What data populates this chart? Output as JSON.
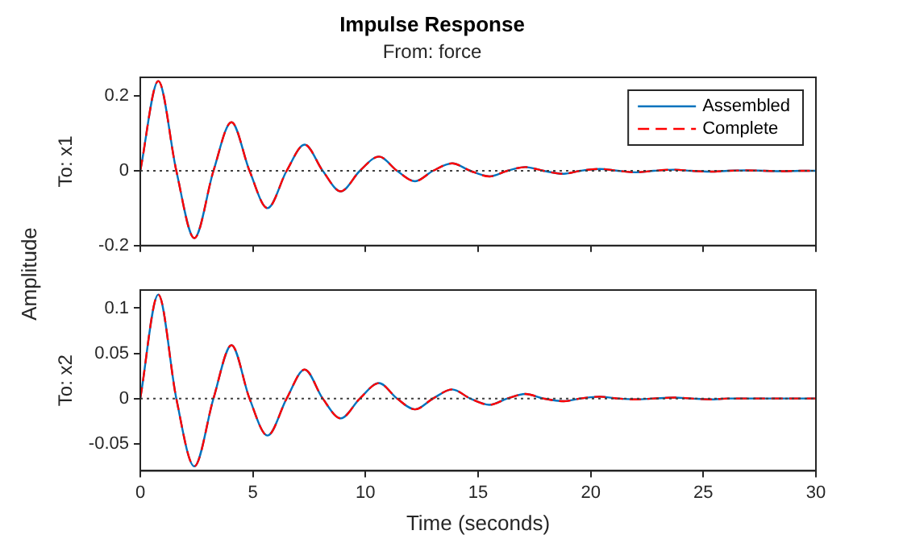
{
  "chart_data": [
    {
      "type": "line",
      "title": "Impulse Response",
      "subtitle": "From: force",
      "ylabel": "To: x1",
      "annotations": [
        "Amplitude"
      ],
      "x": [
        0,
        0.8,
        1.6,
        2.4,
        3.25,
        4.05,
        4.85,
        5.65,
        6.5,
        7.3,
        8.1,
        8.9,
        9.75,
        10.6,
        11.4,
        12.2,
        13.0,
        13.85,
        14.65,
        15.5,
        16.3,
        17.1,
        17.9,
        18.8,
        19.55,
        20.4,
        21.2,
        22.0,
        22.8,
        23.7,
        24.45,
        25.3,
        26.1,
        26.9,
        27.7,
        28.5,
        29.35,
        30
      ],
      "series": [
        {
          "name": "Assembled",
          "color": "#0072bd",
          "line_style": "solid",
          "values": [
            0,
            0.24,
            0,
            -0.18,
            0,
            0.13,
            0,
            -0.1,
            0,
            0.07,
            0,
            -0.055,
            0,
            0.038,
            0,
            -0.028,
            0,
            0.02,
            0,
            -0.015,
            0,
            0.01,
            0,
            -0.008,
            0,
            0.005,
            0,
            -0.004,
            0,
            0.003,
            0,
            -0.002,
            0,
            0.001,
            0,
            -0.001,
            0,
            0
          ]
        },
        {
          "name": "Complete",
          "color": "#ff0000",
          "line_style": "dashed",
          "values": [
            0,
            0.24,
            0,
            -0.18,
            0,
            0.13,
            0,
            -0.1,
            0,
            0.07,
            0,
            -0.055,
            0,
            0.038,
            0,
            -0.028,
            0,
            0.02,
            0,
            -0.015,
            0,
            0.01,
            0,
            -0.008,
            0,
            0.005,
            0,
            -0.004,
            0,
            0.003,
            0,
            -0.002,
            0,
            0.001,
            0,
            -0.001,
            0,
            0
          ]
        }
      ],
      "xlim": [
        0,
        30
      ],
      "xticks": [
        0,
        5,
        10,
        15,
        20,
        25,
        30
      ],
      "ylim": [
        -0.2,
        0.25
      ],
      "yticks": [
        -0.2,
        0,
        0.2
      ],
      "ref_lines": [
        {
          "axis": "y",
          "value": 0,
          "color": "#404040",
          "line_style": "dotted"
        }
      ],
      "tick_labels": "y",
      "grid": false,
      "legend": "top right",
      "marker": "none"
    },
    {
      "type": "line",
      "xlabel": "Time (seconds)",
      "ylabel": "To: x2",
      "x": [
        0,
        0.8,
        1.6,
        2.4,
        3.25,
        4.05,
        4.85,
        5.65,
        6.5,
        7.3,
        8.1,
        8.9,
        9.75,
        10.6,
        11.4,
        12.2,
        13.0,
        13.85,
        14.65,
        15.5,
        16.3,
        17.1,
        17.9,
        18.8,
        19.55,
        20.4,
        21.2,
        22.0,
        22.8,
        23.7,
        24.45,
        25.3,
        26.1,
        26.9,
        27.7,
        28.5,
        29.35,
        30
      ],
      "series": [
        {
          "color": "#0072bd",
          "line_style": "solid",
          "values": [
            0,
            0.115,
            0,
            -0.075,
            0,
            0.059,
            0,
            -0.041,
            0,
            0.032,
            0,
            -0.022,
            0,
            0.017,
            0,
            -0.012,
            0,
            0.01,
            0,
            -0.007,
            0,
            0.005,
            0,
            -0.003,
            0,
            0.002,
            0,
            -0.001,
            0,
            0.001,
            0,
            -0.001,
            0,
            0,
            0,
            0,
            0,
            0
          ]
        },
        {
          "color": "#ff0000",
          "line_style": "dashed",
          "values": [
            0,
            0.115,
            0,
            -0.075,
            0,
            0.059,
            0,
            -0.041,
            0,
            0.032,
            0,
            -0.022,
            0,
            0.017,
            0,
            -0.012,
            0,
            0.01,
            0,
            -0.007,
            0,
            0.005,
            0,
            -0.003,
            0,
            0.002,
            0,
            -0.001,
            0,
            0.001,
            0,
            -0.001,
            0,
            0,
            0,
            0,
            0,
            0
          ]
        }
      ],
      "xlim": [
        0,
        30
      ],
      "xticks": [
        0,
        5,
        10,
        15,
        20,
        25,
        30
      ],
      "ylim": [
        -0.08,
        0.12
      ],
      "yticks": [
        -0.05,
        0,
        0.05,
        0.1
      ],
      "ref_lines": [
        {
          "axis": "y",
          "value": 0,
          "color": "#404040",
          "line_style": "dotted"
        }
      ],
      "grid": false,
      "legend": false,
      "marker": "none"
    }
  ]
}
